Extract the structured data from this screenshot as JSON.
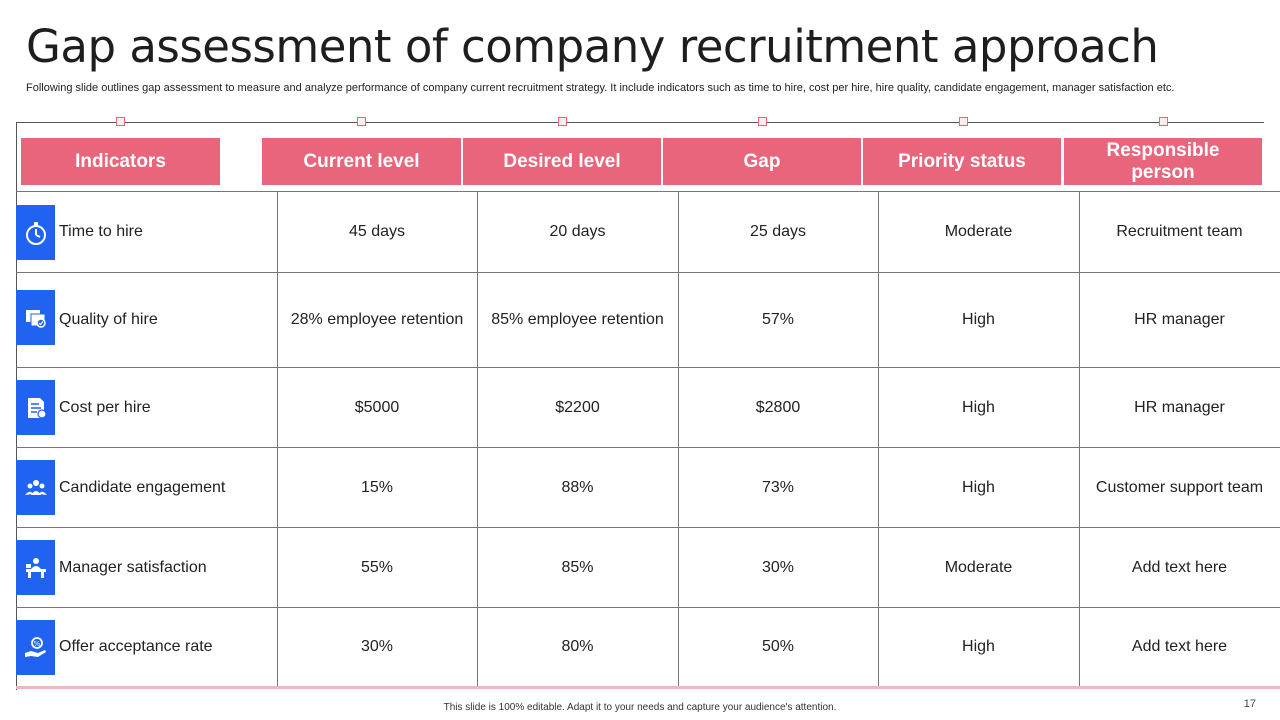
{
  "title": "Gap assessment of company recruitment approach",
  "subtitle": "Following slide outlines gap assessment to measure and analyze performance of company current recruitment strategy. It include indicators such as time to hire, cost per hire, hire quality, candidate engagement, manager satisfaction etc.",
  "headers": [
    "Indicators",
    "Current level",
    "Desired level",
    "Gap",
    "Priority status",
    "Responsible person"
  ],
  "rows": [
    {
      "icon": "stopwatch-icon",
      "indicator": "Time to hire",
      "current": "45 days",
      "desired": "20 days",
      "gap": "25 days",
      "priority": "Moderate",
      "responsible": "Recruitment team"
    },
    {
      "icon": "document-check-icon",
      "indicator": "Quality  of hire",
      "current": "28% employee retention",
      "desired": "85% employee retention",
      "gap": "57%",
      "priority": "High",
      "responsible": "HR manager"
    },
    {
      "icon": "invoice-icon",
      "indicator": "Cost per hire",
      "current": "$5000",
      "desired": "$2200",
      "gap": "$2800",
      "priority": "High",
      "responsible": "HR manager"
    },
    {
      "icon": "people-group-icon",
      "indicator": "Candidate engagement",
      "current": "15%",
      "desired": "88%",
      "gap": "73%",
      "priority": "High",
      "responsible": "Customer support team"
    },
    {
      "icon": "manager-desk-icon",
      "indicator": "Manager satisfaction",
      "current": "55%",
      "desired": "85%",
      "gap": "30%",
      "priority": "Moderate",
      "responsible": "Add text here"
    },
    {
      "icon": "percent-hand-icon",
      "indicator": "Offer acceptance rate",
      "current": "30%",
      "desired": "80%",
      "gap": "50%",
      "priority": "High",
      "responsible": "Add text here"
    }
  ],
  "colors": {
    "header": "#e8657c",
    "icon_bg": "#1f63f0"
  },
  "footer": "This slide is 100% editable. Adapt it to your needs and capture your audience's attention.",
  "page_number": "17"
}
